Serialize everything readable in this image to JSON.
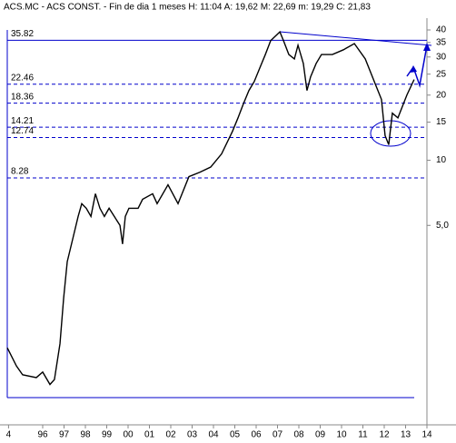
{
  "chart_data": {
    "type": "line",
    "title": "ACS.MC - ACS CONST. - Fin de dia 1 meses H: 11:04 A: 19,62 M: 22,69 m: 19,29 C: 21,83",
    "x": [
      1994.34,
      1994.77,
      1995.06,
      1995.7,
      1996.0,
      1996.34,
      1996.55,
      1996.81,
      1996.98,
      1997.15,
      1997.4,
      1997.66,
      1997.83,
      1998.04,
      1998.26,
      1998.47,
      1998.68,
      1998.89,
      1999.11,
      1999.62,
      1999.74,
      1999.87,
      2000.04,
      2000.47,
      2000.68,
      2001.15,
      2001.36,
      2001.87,
      2002.34,
      2002.85,
      2003.36,
      2003.87,
      2004.38,
      2004.89,
      2005.15,
      2005.4,
      2005.66,
      2005.91,
      2006.17,
      2006.43,
      2006.68,
      2007.11,
      2007.28,
      2007.53,
      2007.79,
      2007.96,
      2008.21,
      2008.38,
      2008.55,
      2008.81,
      2009.06,
      2009.57,
      2010.09,
      2010.6,
      2011.11,
      2011.62,
      2011.87,
      2012.04,
      2012.21,
      2012.38,
      2012.64,
      2013.06,
      2013.4
    ],
    "values": [
      1.36,
      1.12,
      1.02,
      0.99,
      1.05,
      0.92,
      0.97,
      1.42,
      2.3,
      3.4,
      4.3,
      5.5,
      6.3,
      6.0,
      5.5,
      7.0,
      6.0,
      5.5,
      6.0,
      5.0,
      4.1,
      5.5,
      6.0,
      6.0,
      6.6,
      7.0,
      6.3,
      7.7,
      6.3,
      8.4,
      8.8,
      9.3,
      10.7,
      13.6,
      15.7,
      18.2,
      21.0,
      23.1,
      26.7,
      30.8,
      35.7,
      39.2,
      35.7,
      30.8,
      29.4,
      34.0,
      28.0,
      21.0,
      24.3,
      28.0,
      30.8,
      30.8,
      32.4,
      34.6,
      29.4,
      22.0,
      19.1,
      13.0,
      11.8,
      16.5,
      15.7,
      20.0,
      23.6
    ],
    "color": "#000000",
    "log_scale": true,
    "xlim": [
      1994.34,
      2014.0
    ],
    "ylim": [
      0.8,
      40
    ],
    "xticks": [
      {
        "value": 1994.4,
        "label": "4"
      },
      {
        "value": 1996,
        "label": "96"
      },
      {
        "value": 1997,
        "label": "97"
      },
      {
        "value": 1998,
        "label": "98"
      },
      {
        "value": 1999,
        "label": "99"
      },
      {
        "value": 2000,
        "label": "00"
      },
      {
        "value": 2001,
        "label": "01"
      },
      {
        "value": 2002,
        "label": "02"
      },
      {
        "value": 2003,
        "label": "03"
      },
      {
        "value": 2004,
        "label": "04"
      },
      {
        "value": 2005,
        "label": "05"
      },
      {
        "value": 2006,
        "label": "06"
      },
      {
        "value": 2007,
        "label": "07"
      },
      {
        "value": 2008,
        "label": "08"
      },
      {
        "value": 2009,
        "label": "09"
      },
      {
        "value": 2010,
        "label": "10"
      },
      {
        "value": 2011,
        "label": "11"
      },
      {
        "value": 2012,
        "label": "12"
      },
      {
        "value": 2013,
        "label": "13"
      },
      {
        "value": 2014,
        "label": "14"
      }
    ],
    "yticks": [
      40,
      35,
      30,
      25,
      20,
      15,
      10,
      {
        "value": 5,
        "label": "5,0"
      }
    ],
    "levels": [
      35.82,
      22.46,
      18.36,
      14.21,
      12.74,
      8.28
    ],
    "level_color": "#0000cc"
  }
}
